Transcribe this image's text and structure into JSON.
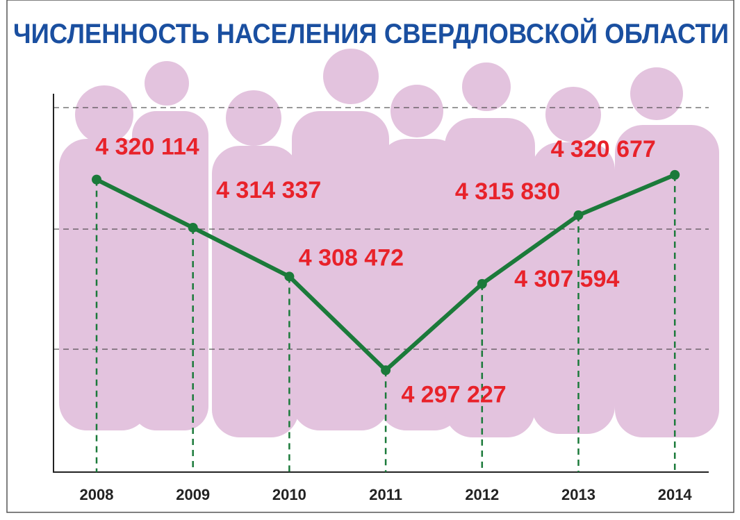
{
  "chart_data": {
    "type": "line",
    "title": "ЧИСЛЕННОСТЬ НАСЕЛЕНИЯ СВЕРДЛОВСКОЙ ОБЛАСТИ",
    "categories": [
      "2008",
      "2009",
      "2010",
      "2011",
      "2012",
      "2013",
      "2014"
    ],
    "series": [
      {
        "color": "#1b7a3a",
        "values": [
          4320114,
          4314337,
          4308472,
          4297227,
          4307594,
          4315830,
          4320677
        ],
        "value_labels": [
          "4 320 114",
          "4 314 337",
          "4 308 472",
          "4 297 227",
          "4 307 594",
          "4 315 830",
          "4 320 677"
        ]
      }
    ],
    "ylim": [
      4285000,
      4330000
    ],
    "label_color": "#e8222a"
  }
}
